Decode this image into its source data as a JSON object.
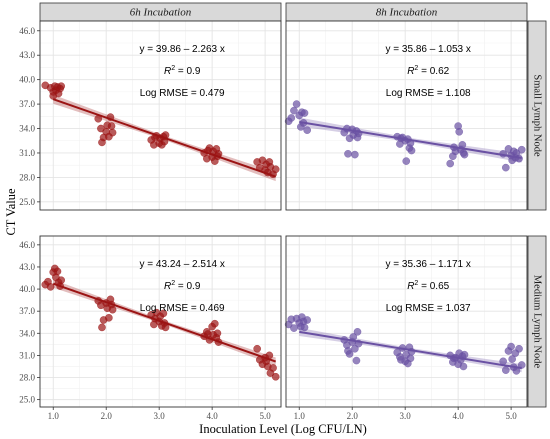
{
  "chart_data": {
    "type": "scatter",
    "xlabel": "Inoculation Level (Log CFU/LN)",
    "ylabel": "CT Value",
    "xlim": [
      0.75,
      5.3
    ],
    "ylim": [
      24.0,
      47.2
    ],
    "xticks": [
      "1.0",
      "2.0",
      "3.0",
      "4.0",
      "5.0"
    ],
    "xtick_values": [
      1,
      2,
      3,
      4,
      5
    ],
    "yticks": [
      "25.0",
      "28.0",
      "31.0",
      "34.0",
      "37.0",
      "40.0",
      "43.0",
      "46.0"
    ],
    "ytick_values": [
      25,
      28,
      31,
      34,
      37,
      40,
      43,
      46
    ],
    "col_labels": [
      "6h Incubation",
      "8h Incubation"
    ],
    "row_labels": [
      "Small Lymph Node",
      "Medium Lymph Node"
    ],
    "grid": true,
    "panels": [
      {
        "col": 0,
        "row": 0,
        "color": "#9b1414",
        "fit": {
          "intercept": 39.86,
          "slope": -2.263
        },
        "equation": "y = 39.86 – 2.263 x",
        "r2_prefix": "R",
        "r2_sup": "2",
        "r2_value": " = 0.9",
        "rmse": "Log RMSE = 0.479",
        "points": [
          [
            0.85,
            39.3
          ],
          [
            0.95,
            39.0
          ],
          [
            1.0,
            38.5
          ],
          [
            1.03,
            39.2
          ],
          [
            1.05,
            38.7
          ],
          [
            1.08,
            39.1
          ],
          [
            1.1,
            38.3
          ],
          [
            1.13,
            38.9
          ],
          [
            1.15,
            39.2
          ],
          [
            1.0,
            38.0
          ],
          [
            1.85,
            35.2
          ],
          [
            1.9,
            34.0
          ],
          [
            1.95,
            32.9
          ],
          [
            2.0,
            33.6
          ],
          [
            2.02,
            34.4
          ],
          [
            2.05,
            33.0
          ],
          [
            2.08,
            35.4
          ],
          [
            2.1,
            34.3
          ],
          [
            2.12,
            33.5
          ],
          [
            1.92,
            32.3
          ],
          [
            2.85,
            32.6
          ],
          [
            2.9,
            32.0
          ],
          [
            2.95,
            33.1
          ],
          [
            3.0,
            32.2
          ],
          [
            3.02,
            32.8
          ],
          [
            3.05,
            32.0
          ],
          [
            3.08,
            33.0
          ],
          [
            3.1,
            32.4
          ],
          [
            3.12,
            33.2
          ],
          [
            2.92,
            32.9
          ],
          [
            3.85,
            31.0
          ],
          [
            3.9,
            30.3
          ],
          [
            3.95,
            31.6
          ],
          [
            4.0,
            30.5
          ],
          [
            4.02,
            31.2
          ],
          [
            4.05,
            30.0
          ],
          [
            4.08,
            31.5
          ],
          [
            4.1,
            30.6
          ],
          [
            4.12,
            30.9
          ],
          [
            3.92,
            31.3
          ],
          [
            4.85,
            29.9
          ],
          [
            4.9,
            29.2
          ],
          [
            4.95,
            30.1
          ],
          [
            5.0,
            28.9
          ],
          [
            5.02,
            29.6
          ],
          [
            5.05,
            28.6
          ],
          [
            5.08,
            29.9
          ],
          [
            5.1,
            29.3
          ],
          [
            5.15,
            28.4
          ],
          [
            5.2,
            29.0
          ]
        ]
      },
      {
        "col": 1,
        "row": 0,
        "color": "#6a51a3",
        "fit": {
          "intercept": 35.86,
          "slope": -1.053
        },
        "equation": "y = 35.86 – 1.053 x",
        "r2_prefix": "R",
        "r2_sup": "2",
        "r2_value": " = 0.62",
        "rmse": "Log RMSE = 1.108",
        "points": [
          [
            0.8,
            34.9
          ],
          [
            0.85,
            35.3
          ],
          [
            0.9,
            36.2
          ],
          [
            0.95,
            37.0
          ],
          [
            1.0,
            35.6
          ],
          [
            1.03,
            34.2
          ],
          [
            1.05,
            36.0
          ],
          [
            1.08,
            34.7
          ],
          [
            1.1,
            35.9
          ],
          [
            1.15,
            33.8
          ],
          [
            1.85,
            33.5
          ],
          [
            1.9,
            34.0
          ],
          [
            1.95,
            32.8
          ],
          [
            2.0,
            33.9
          ],
          [
            2.02,
            33.2
          ],
          [
            2.05,
            30.8
          ],
          [
            2.08,
            33.7
          ],
          [
            2.1,
            32.9
          ],
          [
            2.12,
            33.4
          ],
          [
            1.92,
            30.9
          ],
          [
            2.85,
            33.0
          ],
          [
            2.9,
            32.1
          ],
          [
            2.95,
            32.9
          ],
          [
            3.0,
            32.5
          ],
          [
            3.02,
            30.0
          ],
          [
            3.05,
            32.7
          ],
          [
            3.08,
            31.6
          ],
          [
            3.1,
            32.2
          ],
          [
            3.12,
            31.3
          ],
          [
            2.92,
            32.8
          ],
          [
            3.85,
            29.7
          ],
          [
            3.9,
            30.6
          ],
          [
            3.95,
            31.2
          ],
          [
            4.0,
            34.3
          ],
          [
            4.02,
            33.6
          ],
          [
            4.05,
            31.4
          ],
          [
            4.08,
            32.0
          ],
          [
            4.1,
            31.0
          ],
          [
            4.12,
            30.8
          ],
          [
            3.92,
            31.7
          ],
          [
            4.85,
            30.9
          ],
          [
            4.9,
            29.2
          ],
          [
            4.95,
            31.5
          ],
          [
            5.0,
            30.7
          ],
          [
            5.02,
            30.1
          ],
          [
            5.05,
            31.2
          ],
          [
            5.08,
            30.4
          ],
          [
            5.1,
            31.0
          ],
          [
            5.15,
            30.3
          ],
          [
            5.2,
            31.4
          ]
        ]
      },
      {
        "col": 0,
        "row": 1,
        "color": "#9b1414",
        "fit": {
          "intercept": 43.24,
          "slope": -2.514
        },
        "equation": "y = 43.24 – 2.514 x",
        "r2_prefix": "R",
        "r2_sup": "2",
        "r2_value": " = 0.9",
        "rmse": "Log RMSE = 0.469",
        "points": [
          [
            0.85,
            40.6
          ],
          [
            0.9,
            41.0
          ],
          [
            0.95,
            40.3
          ],
          [
            1.0,
            42.3
          ],
          [
            1.03,
            42.8
          ],
          [
            1.05,
            41.6
          ],
          [
            1.08,
            42.4
          ],
          [
            1.1,
            40.9
          ],
          [
            1.13,
            40.4
          ],
          [
            1.15,
            41.2
          ],
          [
            1.85,
            38.4
          ],
          [
            1.9,
            37.8
          ],
          [
            1.95,
            35.8
          ],
          [
            2.0,
            38.1
          ],
          [
            2.02,
            37.4
          ],
          [
            2.05,
            36.1
          ],
          [
            2.08,
            38.6
          ],
          [
            2.1,
            37.9
          ],
          [
            2.12,
            37.2
          ],
          [
            1.92,
            34.8
          ],
          [
            2.85,
            36.5
          ],
          [
            2.9,
            35.2
          ],
          [
            2.95,
            36.8
          ],
          [
            3.0,
            35.6
          ],
          [
            3.02,
            36.3
          ],
          [
            3.05,
            35.0
          ],
          [
            3.08,
            36.7
          ],
          [
            3.1,
            35.4
          ],
          [
            3.12,
            34.8
          ],
          [
            2.92,
            36.0
          ],
          [
            3.85,
            33.6
          ],
          [
            3.9,
            34.2
          ],
          [
            3.95,
            33.1
          ],
          [
            4.0,
            34.9
          ],
          [
            4.02,
            33.8
          ],
          [
            4.05,
            35.3
          ],
          [
            4.08,
            33.4
          ],
          [
            4.1,
            34.0
          ],
          [
            4.12,
            32.8
          ],
          [
            3.92,
            33.9
          ],
          [
            4.85,
            31.9
          ],
          [
            4.9,
            30.4
          ],
          [
            4.95,
            29.8
          ],
          [
            5.0,
            30.7
          ],
          [
            5.02,
            30.2
          ],
          [
            5.05,
            29.5
          ],
          [
            5.08,
            31.0
          ],
          [
            5.1,
            28.6
          ],
          [
            5.15,
            29.3
          ],
          [
            5.2,
            28.1
          ]
        ]
      },
      {
        "col": 1,
        "row": 1,
        "color": "#6a51a3",
        "fit": {
          "intercept": 35.36,
          "slope": -1.171
        },
        "equation": "y = 35.36 – 1.171 x",
        "r2_prefix": "R",
        "r2_sup": "2",
        "r2_value": " = 0.65",
        "rmse": "Log RMSE = 1.037",
        "points": [
          [
            0.8,
            35.2
          ],
          [
            0.85,
            35.9
          ],
          [
            0.9,
            34.7
          ],
          [
            0.95,
            36.0
          ],
          [
            1.0,
            35.4
          ],
          [
            1.03,
            34.9
          ],
          [
            1.05,
            36.2
          ],
          [
            1.08,
            35.6
          ],
          [
            1.1,
            34.8
          ],
          [
            1.15,
            35.8
          ],
          [
            1.85,
            33.1
          ],
          [
            1.9,
            32.4
          ],
          [
            1.95,
            31.2
          ],
          [
            2.0,
            32.8
          ],
          [
            2.02,
            33.5
          ],
          [
            2.05,
            31.9
          ],
          [
            2.08,
            30.3
          ],
          [
            2.1,
            34.2
          ],
          [
            2.12,
            32.6
          ],
          [
            1.92,
            31.6
          ],
          [
            2.85,
            31.4
          ],
          [
            2.9,
            30.8
          ],
          [
            2.95,
            32.0
          ],
          [
            3.0,
            30.2
          ],
          [
            3.02,
            31.1
          ],
          [
            3.05,
            29.9
          ],
          [
            3.08,
            32.1
          ],
          [
            3.1,
            30.6
          ],
          [
            3.12,
            31.5
          ],
          [
            2.92,
            30.4
          ],
          [
            3.85,
            31.0
          ],
          [
            3.9,
            30.1
          ],
          [
            3.95,
            30.7
          ],
          [
            4.0,
            29.8
          ],
          [
            4.02,
            31.3
          ],
          [
            4.05,
            30.4
          ],
          [
            4.08,
            30.9
          ],
          [
            4.1,
            29.5
          ],
          [
            4.12,
            31.1
          ],
          [
            3.92,
            30.6
          ],
          [
            4.85,
            30.2
          ],
          [
            4.9,
            29.0
          ],
          [
            4.95,
            31.6
          ],
          [
            5.0,
            32.2
          ],
          [
            5.02,
            30.5
          ],
          [
            5.05,
            29.4
          ],
          [
            5.08,
            31.3
          ],
          [
            5.1,
            28.9
          ],
          [
            5.15,
            31.9
          ],
          [
            5.2,
            29.7
          ]
        ]
      }
    ]
  }
}
